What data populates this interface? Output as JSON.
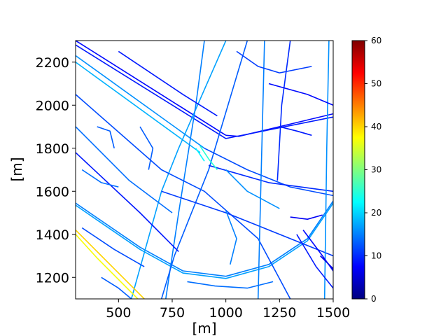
{
  "chart_data": {
    "type": "heatmap",
    "title": "",
    "xlabel": "[m]",
    "ylabel": "[m]",
    "xlim": [
      300,
      1500
    ],
    "ylim": [
      1100,
      2300
    ],
    "x_ticks": [
      500,
      750,
      1000,
      1250,
      1500
    ],
    "y_ticks": [
      1200,
      1400,
      1600,
      1800,
      2000,
      2200
    ],
    "grid": false,
    "colorbar": {
      "colormap": "jet",
      "range": [
        0,
        60
      ],
      "ticks": [
        0,
        10,
        20,
        30,
        40,
        50,
        60
      ],
      "colors": [
        "#00007f",
        "#0000ff",
        "#007fff",
        "#00ffff",
        "#7fff7f",
        "#ffff00",
        "#ff7f00",
        "#ff0000",
        "#7f0000"
      ]
    },
    "segments": [
      {
        "value": 8,
        "points": [
          [
            300,
            2300
          ],
          [
            1000,
            1860
          ]
        ]
      },
      {
        "value": 8,
        "points": [
          [
            1000,
            1860
          ],
          [
            1060,
            1855
          ],
          [
            1500,
            1960
          ]
        ]
      },
      {
        "value": 9,
        "points": [
          [
            300,
            2280
          ],
          [
            1000,
            1845
          ],
          [
            1500,
            1945
          ]
        ]
      },
      {
        "value": 15,
        "points": [
          [
            300,
            1545
          ],
          [
            600,
            1340
          ],
          [
            800,
            1230
          ],
          [
            1000,
            1205
          ],
          [
            1200,
            1260
          ],
          [
            1380,
            1380
          ],
          [
            1500,
            1555
          ]
        ]
      },
      {
        "value": 17,
        "points": [
          [
            300,
            1535
          ],
          [
            600,
            1330
          ],
          [
            800,
            1220
          ],
          [
            1000,
            1195
          ],
          [
            1200,
            1250
          ],
          [
            1380,
            1370
          ],
          [
            1500,
            1545
          ]
        ]
      },
      {
        "value": 16,
        "points": [
          [
            300,
            2230
          ],
          [
            900,
            1800
          ]
        ]
      },
      {
        "value": 18,
        "points": [
          [
            300,
            2200
          ],
          [
            880,
            1780
          ]
        ]
      },
      {
        "value": 17,
        "points": [
          [
            1000,
            2300
          ],
          [
            780,
            1800
          ],
          [
            700,
            1600
          ],
          [
            560,
            1100
          ]
        ]
      },
      {
        "value": 15,
        "points": [
          [
            900,
            2300
          ],
          [
            860,
            2000
          ],
          [
            780,
            1500
          ],
          [
            720,
            1100
          ]
        ]
      },
      {
        "value": 12,
        "points": [
          [
            300,
            2050
          ],
          [
            700,
            1700
          ],
          [
            900,
            1600
          ],
          [
            1150,
            1380
          ],
          [
            1300,
            1100
          ]
        ]
      },
      {
        "value": 13,
        "points": [
          [
            1100,
            2300
          ],
          [
            920,
            1700
          ],
          [
            760,
            1300
          ],
          [
            700,
            1100
          ]
        ]
      },
      {
        "value": 11,
        "points": [
          [
            700,
            1600
          ],
          [
            1000,
            1500
          ],
          [
            1150,
            1440
          ],
          [
            1500,
            1300
          ]
        ]
      },
      {
        "value": 12,
        "points": [
          [
            900,
            1800
          ],
          [
            1100,
            1700
          ],
          [
            1300,
            1620
          ],
          [
            1500,
            1580
          ]
        ]
      },
      {
        "value": 10,
        "points": [
          [
            920,
            1720
          ],
          [
            1200,
            1640
          ],
          [
            1500,
            1600
          ]
        ]
      },
      {
        "value": 14,
        "points": [
          [
            300,
            1900
          ],
          [
            550,
            1650
          ],
          [
            750,
            1500
          ]
        ]
      },
      {
        "value": 9,
        "points": [
          [
            300,
            1780
          ],
          [
            600,
            1500
          ],
          [
            780,
            1320
          ]
        ]
      },
      {
        "value": 15,
        "points": [
          [
            1180,
            2300
          ],
          [
            1170,
            1900
          ],
          [
            1160,
            1500
          ],
          [
            1150,
            1100
          ]
        ]
      },
      {
        "value": 16,
        "points": [
          [
            1480,
            2300
          ],
          [
            1470,
            1800
          ],
          [
            1460,
            1100
          ]
        ]
      },
      {
        "value": 10,
        "points": [
          [
            1300,
            2300
          ],
          [
            1260,
            2000
          ],
          [
            1240,
            1650
          ]
        ]
      },
      {
        "value": 40,
        "points": [
          [
            300,
            1420
          ],
          [
            420,
            1300
          ],
          [
            620,
            1100
          ]
        ]
      },
      {
        "value": 37,
        "points": [
          [
            300,
            1400
          ],
          [
            400,
            1290
          ],
          [
            590,
            1100
          ]
        ]
      },
      {
        "value": 12,
        "points": [
          [
            330,
            1430
          ],
          [
            480,
            1330
          ],
          [
            620,
            1250
          ]
        ]
      },
      {
        "value": 9,
        "points": [
          [
            1330,
            1400
          ],
          [
            1420,
            1250
          ],
          [
            1500,
            1150
          ]
        ]
      },
      {
        "value": 8,
        "points": [
          [
            1360,
            1420
          ],
          [
            1450,
            1300
          ],
          [
            1500,
            1230
          ]
        ]
      },
      {
        "value": 15,
        "points": [
          [
            1000,
            1510
          ],
          [
            1050,
            1380
          ],
          [
            1020,
            1260
          ]
        ]
      },
      {
        "value": 14,
        "points": [
          [
            820,
            1180
          ],
          [
            950,
            1160
          ],
          [
            1100,
            1150
          ],
          [
            1220,
            1180
          ]
        ]
      },
      {
        "value": 13,
        "points": [
          [
            420,
            1200
          ],
          [
            500,
            1150
          ],
          [
            560,
            1100
          ]
        ]
      },
      {
        "value": 9,
        "points": [
          [
            500,
            2250
          ],
          [
            800,
            2050
          ],
          [
            960,
            1950
          ]
        ]
      },
      {
        "value": 8,
        "points": [
          [
            1200,
            2100
          ],
          [
            1380,
            2050
          ],
          [
            1500,
            2000
          ]
        ]
      },
      {
        "value": 25,
        "points": [
          [
            880,
            1810
          ],
          [
            920,
            1750
          ],
          [
            960,
            1700
          ]
        ]
      },
      {
        "value": 22,
        "points": [
          [
            860,
            1800
          ],
          [
            900,
            1740
          ]
        ]
      },
      {
        "value": 11,
        "points": [
          [
            1050,
            2250
          ],
          [
            1150,
            2180
          ],
          [
            1250,
            2150
          ],
          [
            1400,
            2180
          ]
        ]
      },
      {
        "value": 6,
        "points": [
          [
            1440,
            1300
          ],
          [
            1500,
            1240
          ]
        ]
      },
      {
        "value": 13,
        "points": [
          [
            600,
            1900
          ],
          [
            660,
            1800
          ],
          [
            640,
            1700
          ]
        ]
      },
      {
        "value": 14,
        "points": [
          [
            330,
            1700
          ],
          [
            420,
            1640
          ],
          [
            500,
            1620
          ]
        ]
      },
      {
        "value": 9,
        "points": [
          [
            1250,
            1900
          ],
          [
            1330,
            1880
          ],
          [
            1400,
            1860
          ]
        ]
      },
      {
        "value": 16,
        "points": [
          [
            1000,
            1700
          ],
          [
            1100,
            1600
          ],
          [
            1250,
            1520
          ]
        ]
      },
      {
        "value": 13,
        "points": [
          [
            400,
            1900
          ],
          [
            460,
            1880
          ],
          [
            480,
            1800
          ]
        ]
      },
      {
        "value": 7,
        "points": [
          [
            1300,
            1480
          ],
          [
            1380,
            1470
          ],
          [
            1450,
            1490
          ]
        ]
      }
    ]
  }
}
